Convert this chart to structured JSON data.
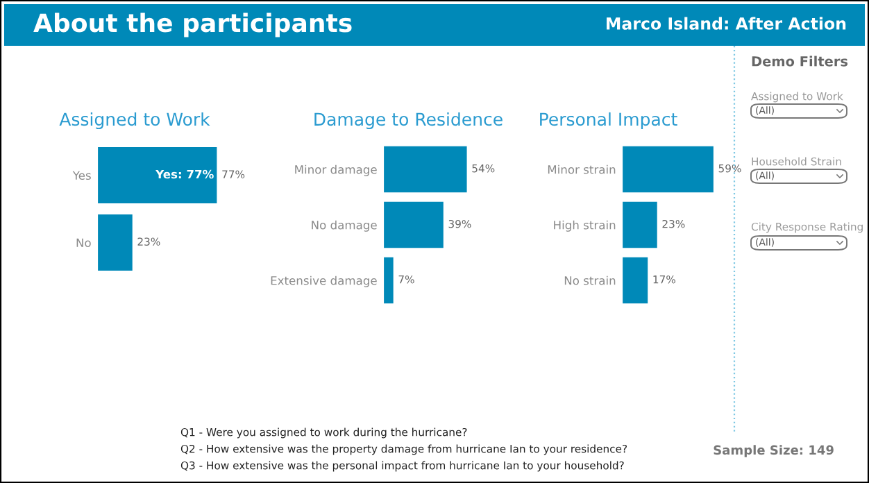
{
  "chart_data": [
    {
      "type": "other",
      "title": "About the participants",
      "subtitle": "Marco Island: After Action",
      "annotations": [
        "Demo Filters",
        "Assigned to Work",
        "(All)",
        "Household Strain",
        "(All)",
        "City Response Rating",
        "(All)",
        "Q1 - Were you assigned to work during the hurricane?",
        "Q2 - How extensive was the property damage from hurricane Ian to your residence?",
        "Q3 - How extensive was the personal impact from hurricane Ian to your household?",
        "Sample Size: 149"
      ]
    },
    {
      "type": "bar",
      "orientation": "horizontal",
      "title": "Assigned to Work",
      "categories": [
        "Yes",
        "No"
      ],
      "values": [
        77,
        23
      ],
      "value_labels": [
        "77%",
        "23%"
      ],
      "color": "#0089b8",
      "annotations": [
        {
          "text": "Yes: 77%",
          "x": 77,
          "y": "Yes"
        }
      ]
    },
    {
      "type": "bar",
      "orientation": "horizontal",
      "title": "Damage to Residence",
      "categories": [
        "Minor damage",
        "No damage",
        "Extensive damage"
      ],
      "values": [
        54,
        39,
        7
      ],
      "value_labels": [
        "54%",
        "39%",
        "7%"
      ],
      "color": "#0089b8"
    },
    {
      "type": "bar",
      "orientation": "horizontal",
      "title": "Personal Impact",
      "categories": [
        "Minor strain",
        "High strain",
        "No strain"
      ],
      "values": [
        59,
        23,
        17
      ],
      "value_labels": [
        "59%",
        "23%",
        "17%"
      ],
      "color": "#0089b8"
    }
  ]
}
